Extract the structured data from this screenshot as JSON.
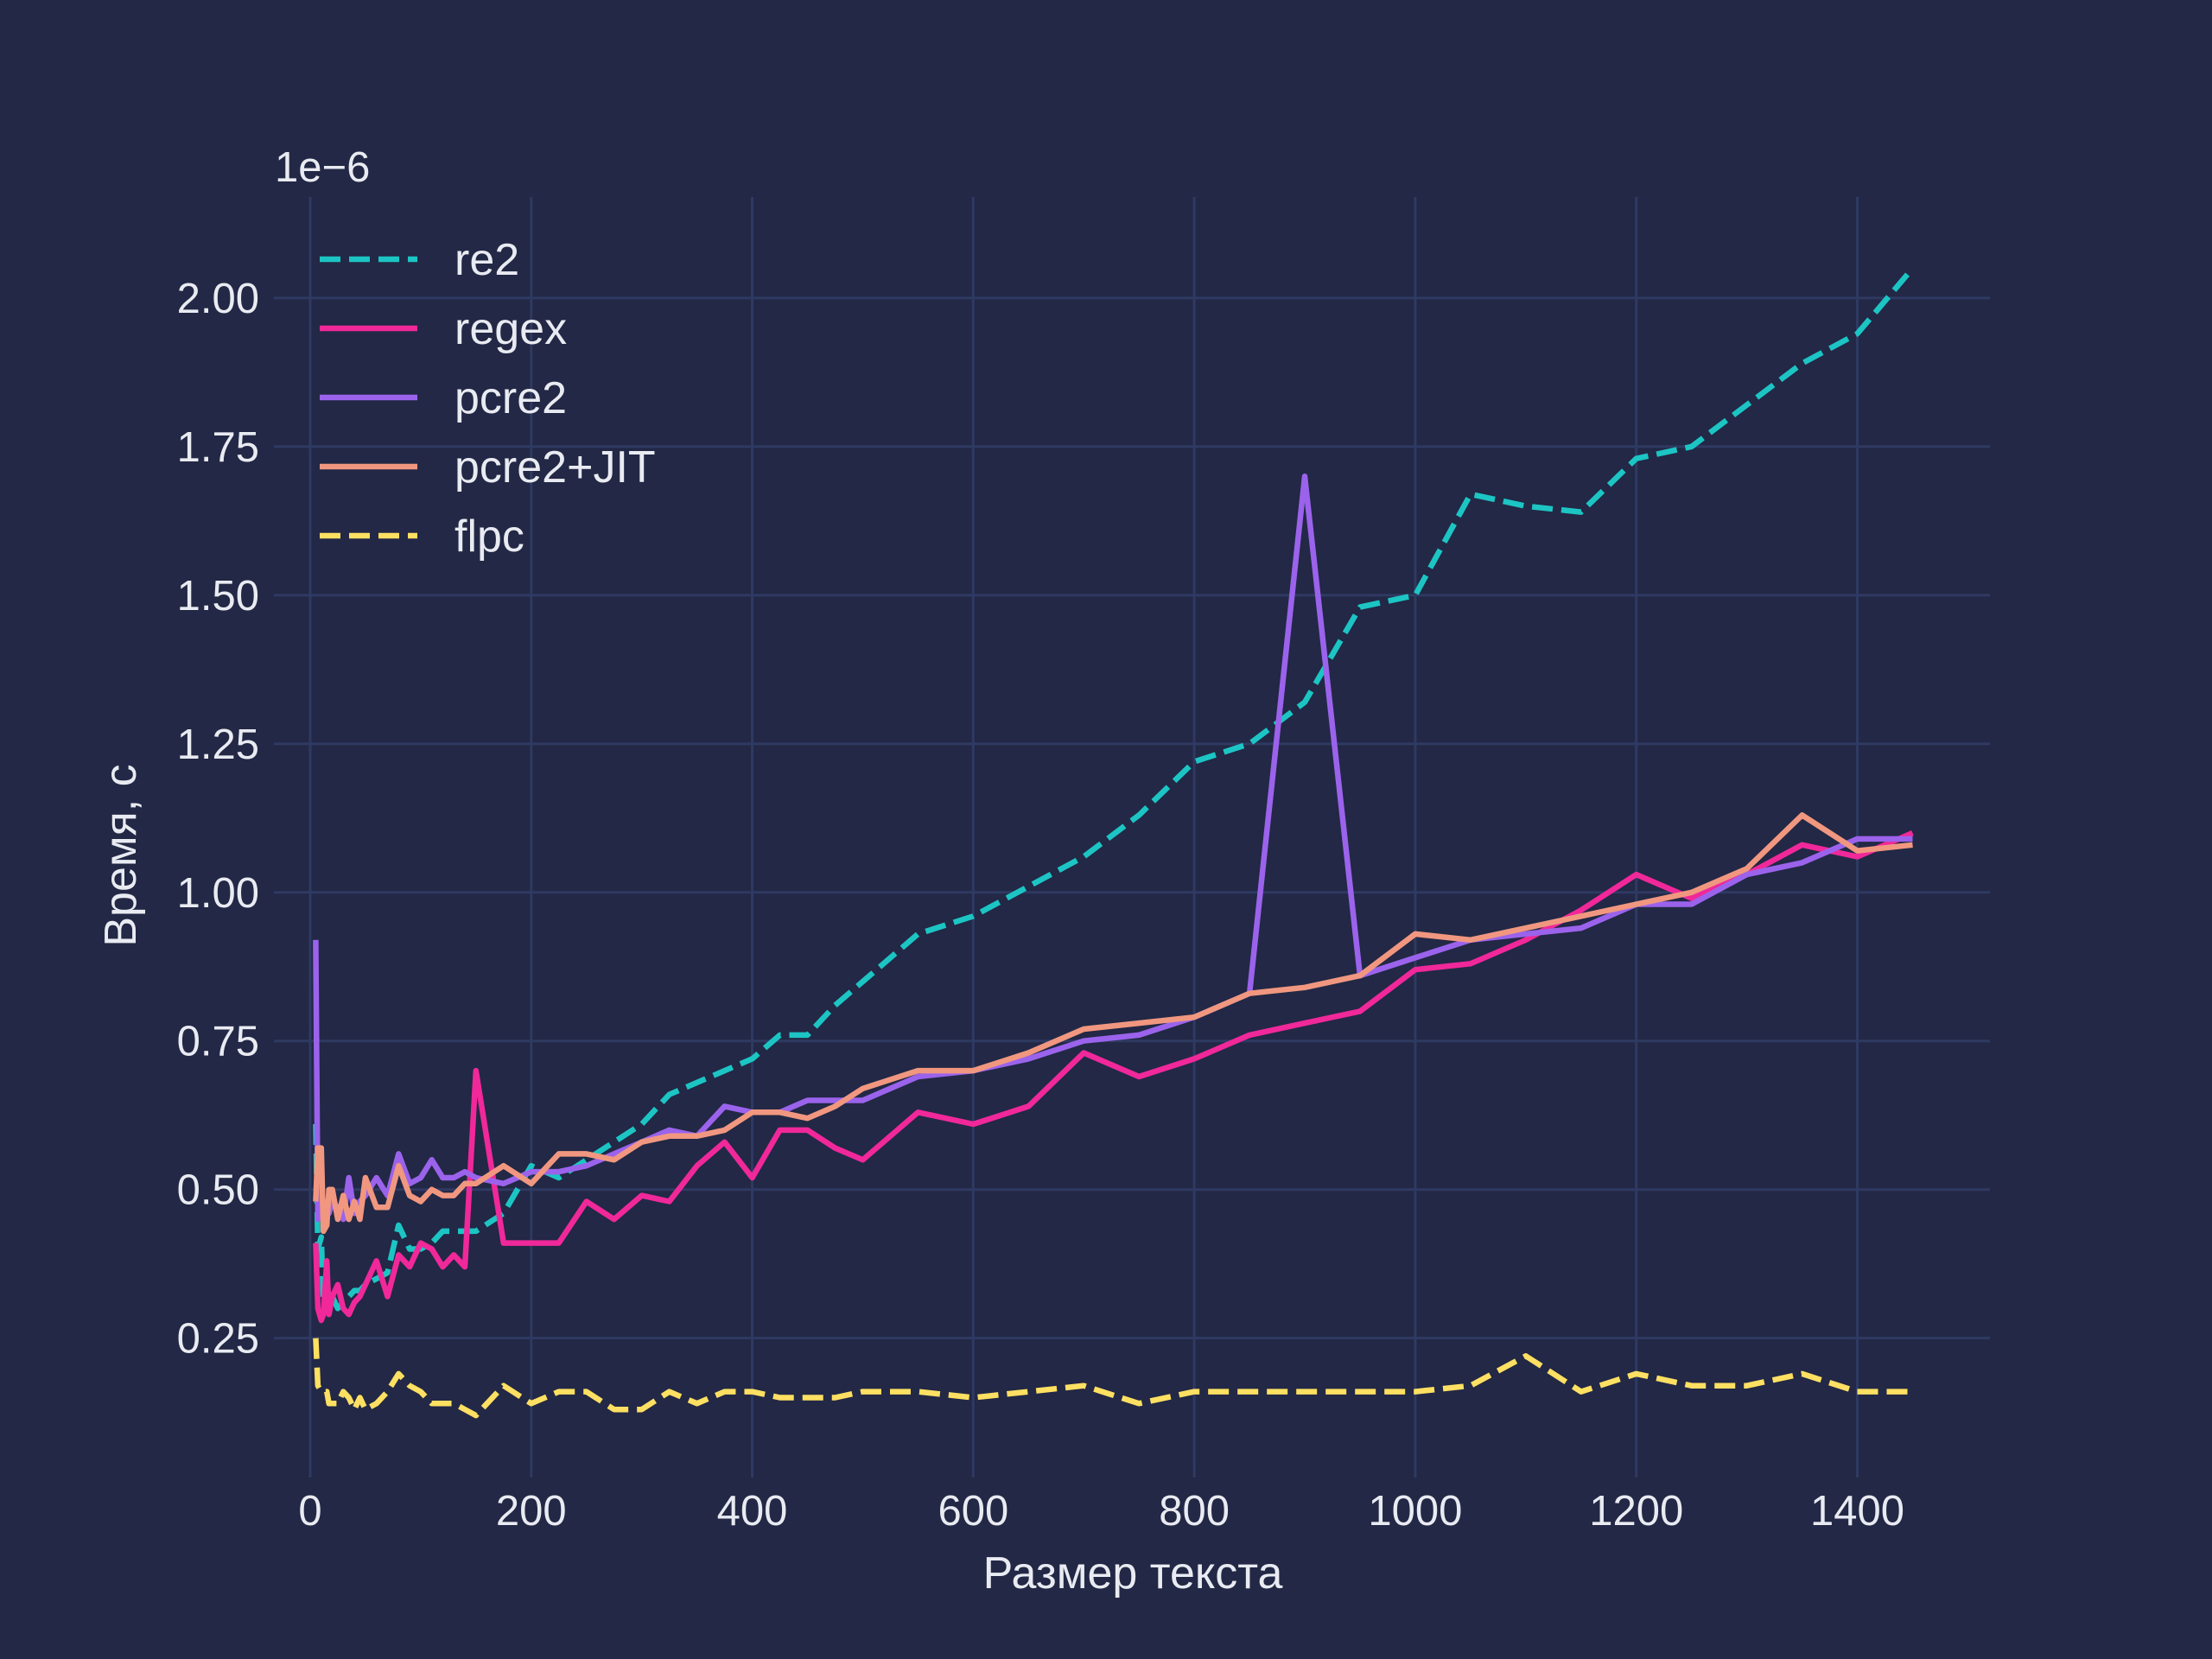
{
  "chart_data": {
    "type": "line",
    "xlabel": "Размер текста",
    "ylabel": "Время, с",
    "y_offset_label": "1e−6",
    "xlim": [
      -25,
      1520
    ],
    "ylim": [
      0.03,
      2.17
    ],
    "x_ticks": [
      0,
      200,
      400,
      600,
      800,
      1000,
      1200,
      1400
    ],
    "x_tick_labels": [
      "0",
      "200",
      "400",
      "600",
      "800",
      "1000",
      "1200",
      "1400"
    ],
    "y_ticks": [
      0.25,
      0.5,
      0.75,
      1.0,
      1.25,
      1.5,
      1.75,
      2.0
    ],
    "y_tick_labels": [
      "0.25",
      "0.50",
      "0.75",
      "1.00",
      "1.25",
      "1.50",
      "1.75",
      "2.00"
    ],
    "grid": true,
    "legend_position": "top-left",
    "colors": {
      "background": "#222845",
      "grid": "#2f3a63",
      "text": "#e9ebf2"
    },
    "x": [
      5,
      7,
      10,
      12,
      15,
      17,
      20,
      25,
      30,
      35,
      40,
      45,
      50,
      60,
      70,
      80,
      90,
      100,
      110,
      120,
      130,
      140,
      150,
      175,
      200,
      225,
      250,
      275,
      300,
      325,
      350,
      375,
      400,
      425,
      450,
      475,
      500,
      550,
      600,
      650,
      700,
      750,
      800,
      850,
      900,
      950,
      1000,
      1050,
      1100,
      1150,
      1200,
      1250,
      1300,
      1350,
      1400,
      1450
    ],
    "series": [
      {
        "name": "re2",
        "color": "#1cc5c4",
        "dash": "dashed",
        "values": [
          0.61,
          0.4,
          0.42,
          0.31,
          0.3,
          0.33,
          0.32,
          0.3,
          0.31,
          0.32,
          0.33,
          0.33,
          0.34,
          0.35,
          0.36,
          0.44,
          0.4,
          0.4,
          0.41,
          0.43,
          0.43,
          0.43,
          0.43,
          0.46,
          0.54,
          0.52,
          0.55,
          0.58,
          0.61,
          0.66,
          0.68,
          0.7,
          0.72,
          0.76,
          0.76,
          0.81,
          0.85,
          0.93,
          0.96,
          1.01,
          1.06,
          1.13,
          1.22,
          1.25,
          1.32,
          1.48,
          1.5,
          1.67,
          1.65,
          1.64,
          1.73,
          1.75,
          1.82,
          1.89,
          1.94,
          2.05
        ]
      },
      {
        "name": "regex",
        "color": "#f0289a",
        "dash": "solid",
        "values": [
          0.41,
          0.3,
          0.28,
          0.29,
          0.38,
          0.29,
          0.32,
          0.34,
          0.3,
          0.29,
          0.31,
          0.32,
          0.34,
          0.38,
          0.32,
          0.39,
          0.37,
          0.41,
          0.4,
          0.37,
          0.39,
          0.37,
          0.7,
          0.41,
          0.41,
          0.41,
          0.48,
          0.45,
          0.49,
          0.48,
          0.54,
          0.58,
          0.52,
          0.6,
          0.6,
          0.57,
          0.55,
          0.63,
          0.61,
          0.64,
          0.73,
          0.69,
          0.72,
          0.76,
          0.78,
          0.8,
          0.87,
          0.88,
          0.92,
          0.97,
          1.03,
          0.99,
          1.03,
          1.08,
          1.06,
          1.1
        ]
      },
      {
        "name": "pcre2",
        "color": "#9b63ec",
        "dash": "solid",
        "values": [
          0.92,
          0.45,
          0.49,
          0.48,
          0.47,
          0.46,
          0.48,
          0.47,
          0.45,
          0.52,
          0.46,
          0.48,
          0.49,
          0.52,
          0.49,
          0.56,
          0.51,
          0.52,
          0.55,
          0.52,
          0.52,
          0.53,
          0.52,
          0.51,
          0.53,
          0.53,
          0.54,
          0.56,
          0.58,
          0.6,
          0.59,
          0.64,
          0.63,
          0.63,
          0.65,
          0.65,
          0.65,
          0.69,
          0.7,
          0.72,
          0.75,
          0.76,
          0.79,
          0.83,
          1.7,
          0.86,
          0.89,
          0.92,
          0.93,
          0.94,
          0.98,
          0.98,
          1.03,
          1.05,
          1.09,
          1.09
        ]
      },
      {
        "name": "pcre2+JIT",
        "color": "#f19780",
        "dash": "solid",
        "values": [
          0.48,
          0.57,
          0.57,
          0.43,
          0.44,
          0.5,
          0.5,
          0.45,
          0.49,
          0.45,
          0.48,
          0.45,
          0.52,
          0.47,
          0.47,
          0.54,
          0.49,
          0.48,
          0.5,
          0.49,
          0.49,
          0.51,
          0.51,
          0.54,
          0.51,
          0.56,
          0.56,
          0.55,
          0.58,
          0.59,
          0.59,
          0.6,
          0.63,
          0.63,
          0.62,
          0.64,
          0.67,
          0.7,
          0.7,
          0.73,
          0.77,
          0.78,
          0.79,
          0.83,
          0.84,
          0.86,
          0.93,
          0.92,
          0.94,
          0.96,
          0.98,
          1.0,
          1.04,
          1.13,
          1.07,
          1.08
        ]
      },
      {
        "name": "flpc",
        "color": "#ffe062",
        "dash": "dashed",
        "values": [
          0.25,
          0.17,
          0.16,
          0.16,
          0.16,
          0.14,
          0.14,
          0.14,
          0.16,
          0.15,
          0.13,
          0.15,
          0.13,
          0.14,
          0.16,
          0.19,
          0.17,
          0.16,
          0.14,
          0.14,
          0.14,
          0.13,
          0.12,
          0.17,
          0.14,
          0.16,
          0.16,
          0.13,
          0.13,
          0.16,
          0.14,
          0.16,
          0.16,
          0.15,
          0.15,
          0.15,
          0.16,
          0.16,
          0.15,
          0.16,
          0.17,
          0.14,
          0.16,
          0.16,
          0.16,
          0.16,
          0.16,
          0.17,
          0.22,
          0.16,
          0.19,
          0.17,
          0.17,
          0.19,
          0.16,
          0.16
        ]
      }
    ]
  }
}
